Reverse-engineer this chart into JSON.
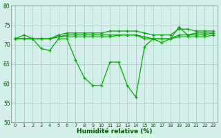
{
  "xlabel": "Humidité relative (%)",
  "bg_color": "#d4f0ea",
  "grid_color": "#a8ccc4",
  "line_color": "#00aa00",
  "xmin": -0.5,
  "xmax": 23.5,
  "ymin": 50,
  "ymax": 80,
  "yticks": [
    50,
    55,
    60,
    65,
    70,
    75,
    80
  ],
  "xticks": [
    0,
    1,
    2,
    3,
    4,
    5,
    6,
    7,
    8,
    9,
    10,
    11,
    12,
    13,
    14,
    15,
    16,
    17,
    18,
    19,
    20,
    21,
    22,
    23
  ],
  "series": [
    [
      71.5,
      72.5,
      71.5,
      69.0,
      68.5,
      71.5,
      71.5,
      66.0,
      61.5,
      59.5,
      59.5,
      65.5,
      65.5,
      59.5,
      56.5,
      69.5,
      71.5,
      70.5,
      71.5,
      74.5,
      72.5,
      73.0,
      73.0,
      73.0
    ],
    [
      71.5,
      71.5,
      71.5,
      71.5,
      71.5,
      72.0,
      72.5,
      72.5,
      72.5,
      72.5,
      72.5,
      72.5,
      72.5,
      72.5,
      72.5,
      72.0,
      71.5,
      71.5,
      71.5,
      72.5,
      72.5,
      72.5,
      72.5,
      73.0
    ],
    [
      71.5,
      71.5,
      71.5,
      71.5,
      71.5,
      72.5,
      73.0,
      73.0,
      73.0,
      73.0,
      73.0,
      73.5,
      73.5,
      73.5,
      73.5,
      73.0,
      72.5,
      72.5,
      72.5,
      74.0,
      74.0,
      73.5,
      73.5,
      73.5
    ],
    [
      71.5,
      71.5,
      71.5,
      71.5,
      71.5,
      72.0,
      72.0,
      72.0,
      72.0,
      72.0,
      72.0,
      72.0,
      72.5,
      72.5,
      72.5,
      71.5,
      71.5,
      71.5,
      71.5,
      72.0,
      72.0,
      72.0,
      72.0,
      72.5
    ]
  ]
}
